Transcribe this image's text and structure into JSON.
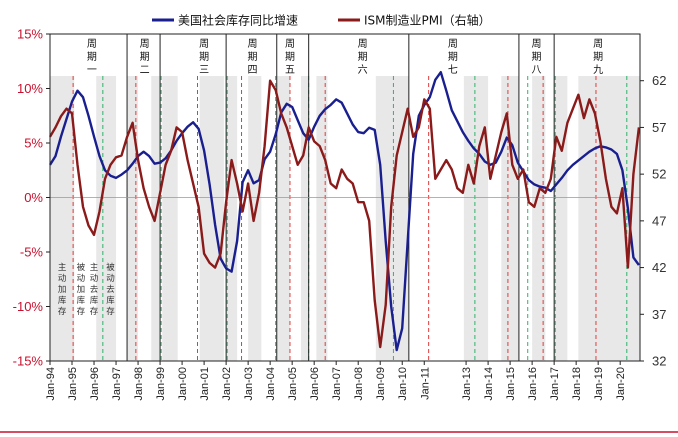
{
  "chart_data": {
    "type": "line",
    "legend": {
      "placement": "top",
      "items": [
        {
          "label": "美国社会库存同比增速",
          "color": "#1a1f8f"
        },
        {
          "label": "ISM制造业PMI（右轴）",
          "color": "#8b1a1a"
        }
      ]
    },
    "axes": {
      "left": {
        "min": -15,
        "max": 15,
        "ticks": [
          -15,
          -10,
          -5,
          0,
          5,
          10,
          15
        ],
        "tick_labels": [
          "-15%",
          "-10%",
          "-5%",
          "0%",
          "5%",
          "10%",
          "15%"
        ],
        "color": "#c8102e"
      },
      "right": {
        "min": 32,
        "max": 67,
        "ticks": [
          32,
          37,
          42,
          47,
          52,
          57,
          62
        ],
        "tick_labels": [
          "32",
          "37",
          "42",
          "47",
          "52",
          "57",
          "62"
        ]
      },
      "x": {
        "start": 1994.0,
        "end": 2020.8,
        "tick_labels": [
          "Jan-94",
          "Jan-95",
          "Jan-96",
          "Jan-97",
          "Jan-98",
          "Jan-99",
          "Jan-00",
          "Jan-01",
          "Jan-02",
          "Jan-03",
          "Jan-04",
          "Jan-05",
          "Jan-06",
          "Jan-07",
          "Jan-08",
          "Jan-09",
          "Jan-10",
          "Jan-11",
          "Jan-13",
          "Jan-14",
          "Jan-15",
          "Jan-16",
          "Jan-17",
          "Jan-18",
          "Jan-19",
          "Jan-20"
        ],
        "tick_years": [
          1994,
          1995,
          1996,
          1997,
          1998,
          1999,
          2000,
          2001,
          2002,
          2003,
          2004,
          2005,
          2006,
          2007,
          2008,
          2009,
          2010,
          2011,
          2012.9,
          2013.9,
          2014.9,
          2015.9,
          2016.9,
          2017.9,
          2018.9,
          2019.9
        ]
      }
    },
    "cycles": [
      {
        "label": "周期一",
        "start": 1994.0,
        "end": 1997.5,
        "label_at": 1995.9
      },
      {
        "label": "周期二",
        "start": 1997.5,
        "end": 1999.0,
        "label_at": 1998.3
      },
      {
        "label": "周期三",
        "start": 1999.0,
        "end": 2002.0,
        "label_at": 2001.0
      },
      {
        "label": "周期四",
        "start": 2002.0,
        "end": 2004.3,
        "label_at": 2003.2
      },
      {
        "label": "周期五",
        "start": 2004.3,
        "end": 2005.75,
        "label_at": 2004.9
      },
      {
        "label": "周期六",
        "start": 2005.75,
        "end": 2010.3,
        "label_at": 2008.2
      },
      {
        "label": "周期七",
        "start": 2010.3,
        "end": 2015.3,
        "label_at": 2012.3
      },
      {
        "label": "周期八",
        "start": 2015.3,
        "end": 2016.9,
        "label_at": 2016.1
      },
      {
        "label": "周期九",
        "start": 2016.9,
        "end": 2020.8,
        "label_at": 2018.9
      }
    ],
    "phase_labels": [
      {
        "text": "主动加库存",
        "x": 1994.55
      },
      {
        "text": "被动加库存",
        "x": 1995.4
      },
      {
        "text": "主动去库存",
        "x": 1996.0
      },
      {
        "text": "被动去库存",
        "x": 1996.75
      }
    ],
    "shaded_bands": [
      [
        1994.0,
        1995.1
      ],
      [
        1996.1,
        1997.0
      ],
      [
        1997.5,
        1998.0
      ],
      [
        1998.6,
        1999.0
      ],
      [
        1999.1,
        1999.8
      ],
      [
        2000.8,
        2001.9
      ],
      [
        2002.0,
        2002.5
      ],
      [
        2003.0,
        2003.6
      ],
      [
        2004.3,
        2004.9
      ],
      [
        2005.4,
        2005.75
      ],
      [
        2006.1,
        2006.6
      ],
      [
        2008.8,
        2010.3
      ],
      [
        2012.8,
        2013.9
      ],
      [
        2014.5,
        2015.3
      ],
      [
        2015.9,
        2016.5
      ],
      [
        2016.9,
        2017.5
      ],
      [
        2018.0,
        2020.8
      ]
    ],
    "red_dashes": [
      1995.05,
      1997.9,
      2000.7,
      2002.7,
      2004.9,
      2006.5,
      2011.2,
      2014.8,
      2016.4,
      2018.8
    ],
    "green_dashes": [
      1996.4,
      1999.05,
      2002.05,
      2004.25,
      2005.75,
      2009.6,
      2013.3,
      2015.7,
      2016.95,
      2020.2
    ],
    "series": [
      {
        "name": "美国社会库存同比增速",
        "axis": "left",
        "color": "#1a1f8f",
        "x": [
          1994.0,
          1994.25,
          1994.5,
          1994.75,
          1995.0,
          1995.25,
          1995.5,
          1995.75,
          1996.0,
          1996.25,
          1996.5,
          1996.75,
          1997.0,
          1997.25,
          1997.5,
          1997.75,
          1998.0,
          1998.25,
          1998.5,
          1998.75,
          1999.0,
          1999.25,
          1999.5,
          1999.75,
          2000.0,
          2000.25,
          2000.5,
          2000.75,
          2001.0,
          2001.25,
          2001.5,
          2001.75,
          2002.0,
          2002.25,
          2002.5,
          2002.75,
          2003.0,
          2003.25,
          2003.5,
          2003.75,
          2004.0,
          2004.25,
          2004.5,
          2004.75,
          2005.0,
          2005.25,
          2005.5,
          2005.75,
          2006.0,
          2006.25,
          2006.5,
          2006.75,
          2007.0,
          2007.25,
          2007.5,
          2007.75,
          2008.0,
          2008.25,
          2008.5,
          2008.75,
          2009.0,
          2009.25,
          2009.5,
          2009.75,
          2010.0,
          2010.25,
          2010.5,
          2010.75,
          2011.0,
          2011.25,
          2011.5,
          2011.75,
          2012.0,
          2012.25,
          2012.5,
          2012.75,
          2013.0,
          2013.25,
          2013.5,
          2013.75,
          2014.0,
          2014.25,
          2014.5,
          2014.75,
          2015.0,
          2015.25,
          2015.5,
          2015.75,
          2016.0,
          2016.25,
          2016.5,
          2016.75,
          2017.0,
          2017.25,
          2017.5,
          2017.75,
          2018.0,
          2018.25,
          2018.5,
          2018.75,
          2019.0,
          2019.25,
          2019.5,
          2019.75,
          2020.0,
          2020.25,
          2020.5,
          2020.75
        ],
        "values": [
          3.0,
          3.8,
          5.6,
          7.2,
          8.8,
          9.8,
          9.2,
          7.5,
          5.6,
          3.8,
          2.5,
          2.0,
          1.8,
          2.1,
          2.5,
          3.1,
          3.8,
          4.2,
          3.8,
          3.1,
          3.2,
          3.6,
          4.3,
          5.2,
          5.9,
          6.5,
          6.9,
          6.3,
          4.3,
          1.2,
          -2.5,
          -5.6,
          -6.5,
          -6.8,
          -4.0,
          1.4,
          2.5,
          1.3,
          1.6,
          3.5,
          4.2,
          5.8,
          7.8,
          8.6,
          8.3,
          7.1,
          5.9,
          5.3,
          6.5,
          7.5,
          8.1,
          8.5,
          9.0,
          8.7,
          7.7,
          6.7,
          6.0,
          5.9,
          6.4,
          6.2,
          3.0,
          -4.0,
          -10.0,
          -14.0,
          -12.0,
          -4.0,
          4.0,
          7.5,
          8.5,
          9.2,
          10.8,
          11.5,
          9.8,
          8.0,
          7.0,
          6.0,
          5.2,
          4.5,
          4.0,
          3.3,
          3.0,
          3.2,
          4.2,
          5.5,
          4.8,
          3.2,
          2.4,
          1.6,
          1.2,
          1.0,
          0.9,
          0.6,
          1.2,
          1.8,
          2.5,
          3.0,
          3.4,
          3.8,
          4.2,
          4.5,
          4.7,
          4.6,
          4.4,
          4.0,
          2.5,
          -1.0,
          -5.5,
          -6.2
        ]
      },
      {
        "name": "ISM制造业PMI（右轴）",
        "axis": "right",
        "color": "#8b1a1a",
        "x": [
          1994.0,
          1994.25,
          1994.5,
          1994.75,
          1995.0,
          1995.25,
          1995.5,
          1995.75,
          1996.0,
          1996.25,
          1996.5,
          1996.75,
          1997.0,
          1997.25,
          1997.5,
          1997.75,
          1998.0,
          1998.25,
          1998.5,
          1998.75,
          1999.0,
          1999.25,
          1999.5,
          1999.75,
          2000.0,
          2000.25,
          2000.5,
          2000.75,
          2001.0,
          2001.25,
          2001.5,
          2001.75,
          2002.0,
          2002.25,
          2002.5,
          2002.75,
          2003.0,
          2003.25,
          2003.5,
          2003.75,
          2004.0,
          2004.25,
          2004.5,
          2004.75,
          2005.0,
          2005.25,
          2005.5,
          2005.75,
          2006.0,
          2006.25,
          2006.5,
          2006.75,
          2007.0,
          2007.25,
          2007.5,
          2007.75,
          2008.0,
          2008.25,
          2008.5,
          2008.75,
          2009.0,
          2009.25,
          2009.5,
          2009.75,
          2010.0,
          2010.25,
          2010.5,
          2010.75,
          2011.0,
          2011.25,
          2011.5,
          2011.75,
          2012.0,
          2012.25,
          2012.5,
          2012.75,
          2013.0,
          2013.25,
          2013.5,
          2013.75,
          2014.0,
          2014.25,
          2014.5,
          2014.75,
          2015.0,
          2015.25,
          2015.5,
          2015.75,
          2016.0,
          2016.25,
          2016.5,
          2016.75,
          2017.0,
          2017.25,
          2017.5,
          2017.75,
          2018.0,
          2018.25,
          2018.5,
          2018.75,
          2019.0,
          2019.25,
          2019.5,
          2019.75,
          2020.0,
          2020.25,
          2020.5,
          2020.75
        ],
        "values": [
          56.0,
          57.0,
          58.2,
          59.0,
          58.5,
          53.0,
          48.5,
          46.5,
          45.5,
          48.0,
          51.5,
          53.0,
          53.8,
          54.0,
          56.0,
          57.5,
          53.5,
          50.5,
          48.5,
          47.0,
          50.0,
          53.0,
          54.5,
          57.0,
          56.5,
          53.5,
          51.0,
          48.5,
          43.5,
          42.5,
          42.0,
          43.5,
          49.0,
          53.5,
          51.0,
          48.0,
          51.0,
          47.0,
          50.0,
          55.0,
          62.0,
          61.0,
          58.5,
          57.0,
          55.0,
          53.0,
          54.0,
          57.0,
          55.5,
          55.0,
          53.5,
          51.0,
          50.5,
          52.5,
          51.5,
          51.0,
          49.0,
          49.0,
          47.0,
          38.5,
          33.5,
          38.0,
          48.5,
          54.0,
          56.5,
          59.0,
          56.0,
          57.0,
          60.0,
          59.0,
          51.5,
          52.5,
          53.5,
          52.5,
          50.5,
          50.0,
          53.0,
          51.0,
          55.0,
          57.0,
          51.5,
          54.0,
          56.5,
          58.5,
          53.0,
          51.5,
          52.5,
          49.0,
          48.5,
          50.5,
          50.0,
          51.5,
          56.0,
          54.5,
          57.5,
          59.0,
          60.5,
          58.0,
          60.0,
          58.5,
          55.5,
          51.5,
          48.5,
          47.8,
          50.5,
          42.0,
          52.0,
          57.0
        ]
      }
    ]
  }
}
